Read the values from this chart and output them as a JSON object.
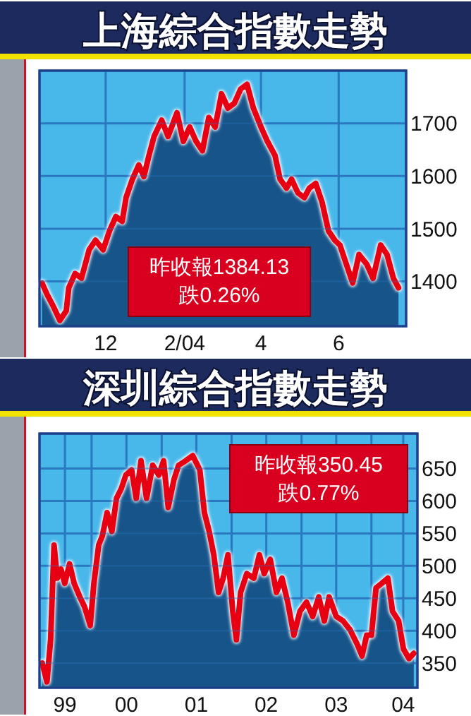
{
  "chart_data": [
    {
      "type": "area",
      "title": "上海綜合指數走勢",
      "x": [
        "2003-10-12",
        "2003-10-16",
        "2003-10-21",
        "2003-10-26",
        "2003-10-31",
        "2003-11-02",
        "2003-11-07",
        "2003-11-12",
        "2003-11-18",
        "2003-11-23",
        "2003-11-29",
        "2003-12-04",
        "2003-12-09",
        "2003-12-14",
        "2003-12-17",
        "2003-12-22",
        "2003-12-27",
        "2003-12-31",
        "2004-01-04",
        "2004-01-08",
        "2004-01-14",
        "2004-01-19",
        "2004-01-26",
        "2004-01-31",
        "2004-02-05",
        "2004-02-10",
        "2004-02-15",
        "2004-02-20",
        "2004-02-25",
        "2004-03-01",
        "2004-03-06",
        "2004-03-11",
        "2004-03-16",
        "2004-03-21",
        "2004-03-26",
        "2004-04-01",
        "2004-04-06",
        "2004-04-12",
        "2004-04-16",
        "2004-04-21",
        "2004-04-25",
        "2004-04-30",
        "2004-05-05",
        "2004-05-09",
        "2004-05-14",
        "2004-05-19",
        "2004-05-24",
        "2004-05-29",
        "2004-06-02",
        "2004-06-07",
        "2004-06-12",
        "2004-06-17",
        "2004-06-23",
        "2004-06-28",
        "2004-07-04",
        "2004-07-09",
        "2004-07-14",
        "2004-07-18"
      ],
      "series": [
        {
          "color": "#17548a",
          "values": [
            1397,
            1375,
            1352,
            1326,
            1344,
            1388,
            1415,
            1406,
            1460,
            1478,
            1460,
            1496,
            1523,
            1514,
            1559,
            1594,
            1621,
            1599,
            1639,
            1675,
            1706,
            1675,
            1720,
            1666,
            1693,
            1666,
            1648,
            1711,
            1693,
            1756,
            1729,
            1738,
            1765,
            1774,
            1729,
            1693,
            1666,
            1639,
            1594,
            1577,
            1594,
            1568,
            1559,
            1577,
            1586,
            1550,
            1496,
            1478,
            1469,
            1433,
            1397,
            1451,
            1433,
            1406,
            1469,
            1451,
            1406,
            1388
          ]
        },
        {
          "type": "line",
          "color": "#e60012",
          "values": [
            1397,
            1375,
            1352,
            1326,
            1344,
            1388,
            1415,
            1406,
            1460,
            1478,
            1460,
            1496,
            1523,
            1514,
            1559,
            1594,
            1621,
            1599,
            1639,
            1675,
            1706,
            1675,
            1720,
            1666,
            1693,
            1666,
            1648,
            1711,
            1693,
            1756,
            1729,
            1738,
            1765,
            1774,
            1729,
            1693,
            1666,
            1639,
            1594,
            1577,
            1594,
            1568,
            1559,
            1577,
            1586,
            1550,
            1496,
            1478,
            1469,
            1433,
            1397,
            1451,
            1433,
            1406,
            1469,
            1451,
            1406,
            1388
          ]
        }
      ],
      "xlim": [
        "2003-10-10",
        "2004-07-24"
      ],
      "xticks": [
        {
          "value": "2003-12-01",
          "label": "12"
        },
        {
          "value": "2004-02-01",
          "label": "2/04"
        },
        {
          "value": "2004-04-01",
          "label": "4"
        },
        {
          "value": "2004-06-01",
          "label": "6"
        }
      ],
      "ylim": [
        1315,
        1800
      ],
      "yticks": [
        1400,
        1500,
        1600,
        1700
      ],
      "grid": true,
      "annotations": [
        "昨收報1384.13",
        "跌0.26%"
      ]
    },
    {
      "type": "area",
      "title": "深圳綜合指數走勢",
      "x": [
        "1999-04-18",
        "1999-05-13",
        "1999-06-01",
        "1999-06-19",
        "1999-07-06",
        "1999-07-25",
        "1999-08-14",
        "1999-09-08",
        "1999-10-02",
        "1999-11-01",
        "1999-11-25",
        "1999-12-25",
        "2000-01-13",
        "2000-02-07",
        "2000-02-26",
        "2000-03-22",
        "2000-04-16",
        "2000-05-10",
        "2000-06-04",
        "2000-06-28",
        "2000-07-28",
        "2000-08-21",
        "2000-09-15",
        "2000-10-14",
        "2000-11-15",
        "2000-12-17",
        "2001-01-11",
        "2001-02-04",
        "2001-03-06",
        "2001-03-30",
        "2001-05-06",
        "2001-06-12",
        "2001-07-19",
        "2001-08-12",
        "2001-09-06",
        "2001-09-30",
        "2001-10-25",
        "2001-11-18",
        "2001-12-13",
        "2002-01-07",
        "2002-01-26",
        "2002-02-17",
        "2002-03-21",
        "2002-04-27",
        "2002-05-26",
        "2002-06-20",
        "2002-07-22",
        "2002-08-23",
        "2002-09-21",
        "2002-10-21",
        "2002-11-22",
        "2002-12-24",
        "2003-01-27",
        "2003-02-28",
        "2003-04-01",
        "2003-04-30",
        "2003-05-25",
        "2003-07-01",
        "2003-08-06",
        "2003-09-12",
        "2003-10-19",
        "2003-11-13",
        "2003-12-07",
        "2004-01-01",
        "2004-01-25",
        "2004-02-24",
        "2004-03-27",
        "2004-04-20",
        "2004-05-22",
        "2004-06-16",
        "2004-07-15",
        "2004-08-09"
      ],
      "series": [
        {
          "color": "#17548a",
          "values": [
            350,
            321,
            386,
            532,
            481,
            495,
            473,
            503,
            473,
            452,
            437,
            408,
            473,
            532,
            546,
            582,
            553,
            604,
            619,
            640,
            648,
            604,
            662,
            604,
            655,
            640,
            662,
            590,
            633,
            655,
            662,
            670,
            648,
            582,
            553,
            517,
            459,
            481,
            517,
            430,
            386,
            459,
            488,
            481,
            517,
            488,
            510,
            459,
            481,
            444,
            393,
            430,
            444,
            422,
            452,
            415,
            452,
            422,
            415,
            401,
            379,
            361,
            393,
            393,
            466,
            473,
            481,
            430,
            415,
            372,
            357,
            365
          ]
        },
        {
          "type": "line",
          "color": "#e60012",
          "values": [
            350,
            321,
            386,
            532,
            481,
            495,
            473,
            503,
            473,
            452,
            437,
            408,
            473,
            532,
            546,
            582,
            553,
            604,
            619,
            640,
            648,
            604,
            662,
            604,
            655,
            640,
            662,
            590,
            633,
            655,
            662,
            670,
            648,
            582,
            553,
            517,
            459,
            481,
            517,
            430,
            386,
            459,
            488,
            481,
            517,
            488,
            510,
            459,
            481,
            444,
            393,
            430,
            444,
            422,
            452,
            415,
            452,
            422,
            415,
            401,
            379,
            361,
            393,
            393,
            466,
            473,
            481,
            430,
            415,
            372,
            357,
            365
          ]
        }
      ],
      "xlim": [
        "1999-04-04",
        "2004-08-28"
      ],
      "xticks": [
        {
          "value": "1999-08-15",
          "label": "99"
        },
        {
          "value": "2000-01-01",
          "label": null
        },
        {
          "value": "2000-07-01",
          "label": "00"
        },
        {
          "value": "2001-01-01",
          "label": null
        },
        {
          "value": "2001-07-01",
          "label": "01"
        },
        {
          "value": "2002-01-01",
          "label": null
        },
        {
          "value": "2002-07-01",
          "label": "02"
        },
        {
          "value": "2003-01-01",
          "label": null
        },
        {
          "value": "2003-07-01",
          "label": "03"
        },
        {
          "value": "2004-01-01",
          "label": null
        },
        {
          "value": "2004-06-15",
          "label": "04"
        }
      ],
      "ylim": [
        312,
        704
      ],
      "yticks": [
        350,
        400,
        450,
        500,
        550,
        600,
        650
      ],
      "grid": true,
      "annotations": [
        "昨收報350.45",
        "跌0.77%"
      ]
    }
  ]
}
